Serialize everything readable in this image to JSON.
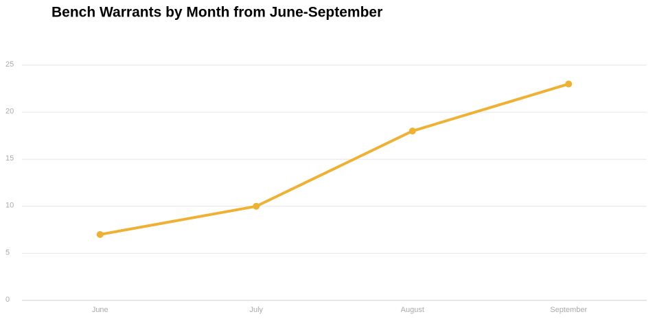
{
  "chart_data": {
    "type": "line",
    "title": "Bench Warrants by Month from June-September",
    "categories": [
      "June",
      "July",
      "August",
      "September"
    ],
    "values": [
      7,
      10,
      18,
      23
    ],
    "color": "#efb134",
    "ylim": [
      0,
      25
    ],
    "yticks": [
      0,
      5,
      10,
      15,
      20,
      25
    ],
    "grid": true
  }
}
